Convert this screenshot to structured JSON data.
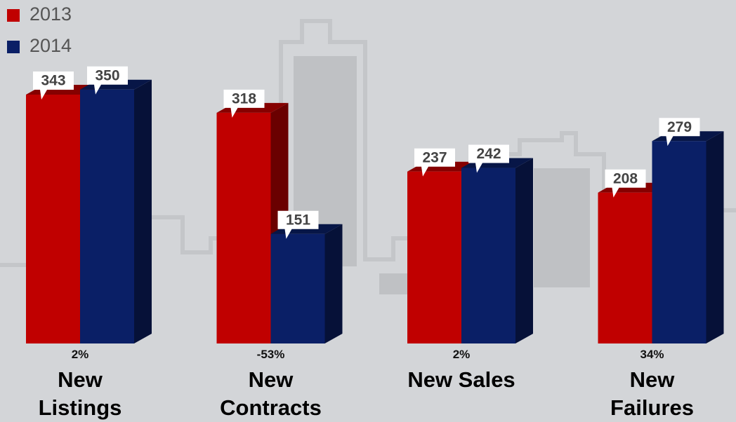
{
  "chart_data": {
    "type": "bar",
    "categories": [
      "New Listings",
      "New Contracts",
      "New Sales",
      "New Failures"
    ],
    "annotations": [
      "2%",
      "-53%",
      "2%",
      "34%"
    ],
    "series": [
      {
        "name": "2013",
        "color": "#c00000",
        "values": [
          343,
          318,
          237,
          208
        ]
      },
      {
        "name": "2014",
        "color": "#0a1f66",
        "values": [
          350,
          151,
          242,
          279
        ]
      }
    ],
    "legend": "top-left"
  }
}
